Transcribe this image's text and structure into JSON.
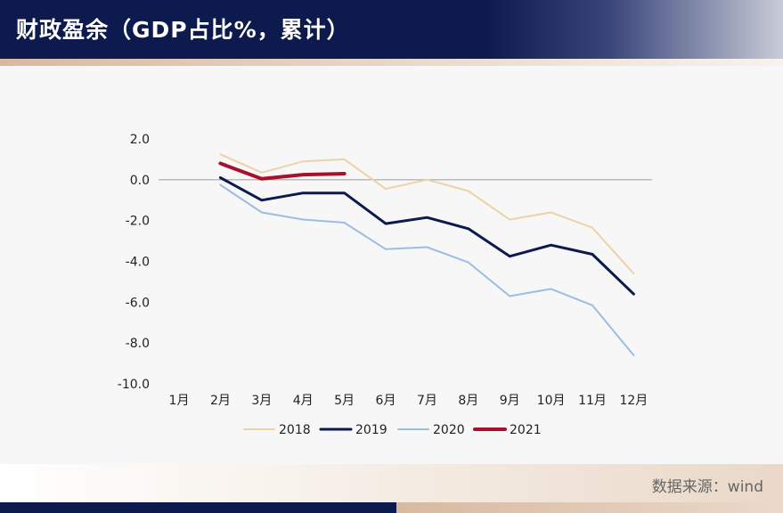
{
  "title": "财政盈余（GDP占比%，累计）",
  "source": "数据来源：wind",
  "chart_data": {
    "type": "line",
    "categories": [
      "1月",
      "2月",
      "3月",
      "4月",
      "5月",
      "6月",
      "7月",
      "8月",
      "9月",
      "10月",
      "11月",
      "12月"
    ],
    "yticks": [
      "2.0",
      "0.0",
      "-2.0",
      "-4.0",
      "-6.0",
      "-8.0",
      "-10.0"
    ],
    "ylim": [
      -10,
      2
    ],
    "legend_position": "bottom",
    "grid": false,
    "zero_line": true,
    "series": [
      {
        "name": "2018",
        "color": "#ecd3a8",
        "width": 2,
        "values": [
          null,
          1.25,
          0.35,
          0.9,
          1.0,
          -0.45,
          0.0,
          -0.55,
          -1.95,
          -1.6,
          -2.35,
          -4.6
        ]
      },
      {
        "name": "2019",
        "color": "#0d1a4e",
        "width": 3,
        "values": [
          null,
          0.1,
          -1.0,
          -0.65,
          -0.65,
          -2.15,
          -1.85,
          -2.4,
          -3.75,
          -3.2,
          -3.65,
          -5.6
        ]
      },
      {
        "name": "2020",
        "color": "#9dbde0",
        "width": 2,
        "values": [
          null,
          -0.25,
          -1.6,
          -1.95,
          -2.1,
          -3.4,
          -3.3,
          -4.05,
          -5.7,
          -5.35,
          -6.15,
          -8.6
        ]
      },
      {
        "name": "2021",
        "color": "#a8102e",
        "width": 4,
        "values": [
          null,
          0.8,
          0.05,
          0.25,
          0.3,
          null,
          null,
          null,
          null,
          null,
          null,
          null
        ]
      }
    ]
  }
}
